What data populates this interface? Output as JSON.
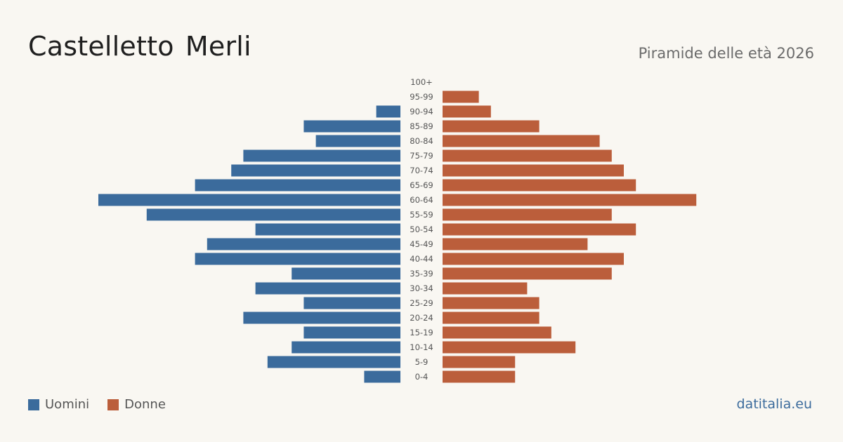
{
  "header": {
    "title": "Castelletto Merli",
    "subtitle": "Piramide delle età 2026"
  },
  "legend": {
    "men_label": "Uomini",
    "women_label": "Donne"
  },
  "footer": {
    "brand": "datitalia.eu"
  },
  "colors": {
    "men": "#3b6b9c",
    "women": "#bb5e3b",
    "background": "#f9f7f2"
  },
  "chart_data": {
    "type": "bar",
    "orientation": "horizontal-pyramid",
    "categories": [
      "100+",
      "95-99",
      "90-94",
      "85-89",
      "80-84",
      "75-79",
      "70-74",
      "65-69",
      "60-64",
      "55-59",
      "50-54",
      "45-49",
      "40-44",
      "35-39",
      "30-34",
      "25-29",
      "20-24",
      "15-19",
      "10-14",
      "5-9",
      "0-4"
    ],
    "series": [
      {
        "name": "Uomini",
        "values": [
          0,
          0,
          2,
          8,
          7,
          13,
          14,
          17,
          25,
          21,
          12,
          16,
          17,
          9,
          12,
          8,
          13,
          8,
          9,
          11,
          3
        ]
      },
      {
        "name": "Donne",
        "values": [
          0,
          3,
          4,
          8,
          13,
          14,
          15,
          16,
          21,
          14,
          16,
          12,
          15,
          14,
          7,
          8,
          8,
          9,
          11,
          6,
          6
        ]
      }
    ],
    "legend_position": "bottom-left",
    "grid": false
  }
}
